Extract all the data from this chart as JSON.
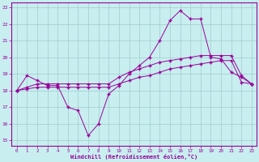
{
  "xlabel": "Windchill (Refroidissement éolien,°C)",
  "xlim": [
    -0.5,
    23.5
  ],
  "ylim": [
    14.7,
    23.3
  ],
  "yticks": [
    15,
    16,
    17,
    18,
    19,
    20,
    21,
    22,
    23
  ],
  "xticks": [
    0,
    1,
    2,
    3,
    4,
    5,
    6,
    7,
    8,
    9,
    10,
    11,
    12,
    13,
    14,
    15,
    16,
    17,
    18,
    19,
    20,
    21,
    22,
    23
  ],
  "bg_color": "#c8eef0",
  "line_color": "#990099",
  "grid_color": "#a0cccc",
  "line1_x": [
    0,
    1,
    2,
    3,
    4,
    5,
    6,
    7,
    8,
    9,
    10,
    11,
    12,
    13,
    14,
    15,
    16,
    17,
    18,
    19,
    20,
    21,
    22,
    23
  ],
  "line1_y": [
    18.0,
    18.9,
    18.6,
    18.3,
    18.3,
    17.0,
    16.8,
    15.3,
    16.0,
    17.8,
    18.3,
    19.0,
    19.5,
    20.0,
    21.0,
    22.2,
    22.8,
    22.3,
    22.3,
    20.0,
    19.9,
    19.1,
    18.8,
    18.4
  ],
  "line2_x": [
    0,
    1,
    2,
    3,
    4,
    5,
    6,
    7,
    8,
    9,
    10,
    11,
    12,
    13,
    14,
    15,
    16,
    17,
    18,
    19,
    20,
    21,
    22,
    23
  ],
  "line2_y": [
    18.0,
    18.1,
    18.2,
    18.2,
    18.2,
    18.2,
    18.2,
    18.2,
    18.2,
    18.2,
    18.4,
    18.6,
    18.8,
    18.9,
    19.1,
    19.3,
    19.4,
    19.5,
    19.6,
    19.7,
    19.8,
    19.8,
    18.5,
    18.4
  ],
  "line3_x": [
    0,
    1,
    2,
    3,
    4,
    5,
    6,
    7,
    8,
    9,
    10,
    11,
    12,
    13,
    14,
    15,
    16,
    17,
    18,
    19,
    20,
    21,
    22,
    23
  ],
  "line3_y": [
    18.0,
    18.2,
    18.4,
    18.4,
    18.4,
    18.4,
    18.4,
    18.4,
    18.4,
    18.4,
    18.8,
    19.1,
    19.3,
    19.5,
    19.7,
    19.8,
    19.9,
    20.0,
    20.1,
    20.1,
    20.1,
    20.1,
    18.9,
    18.4
  ]
}
